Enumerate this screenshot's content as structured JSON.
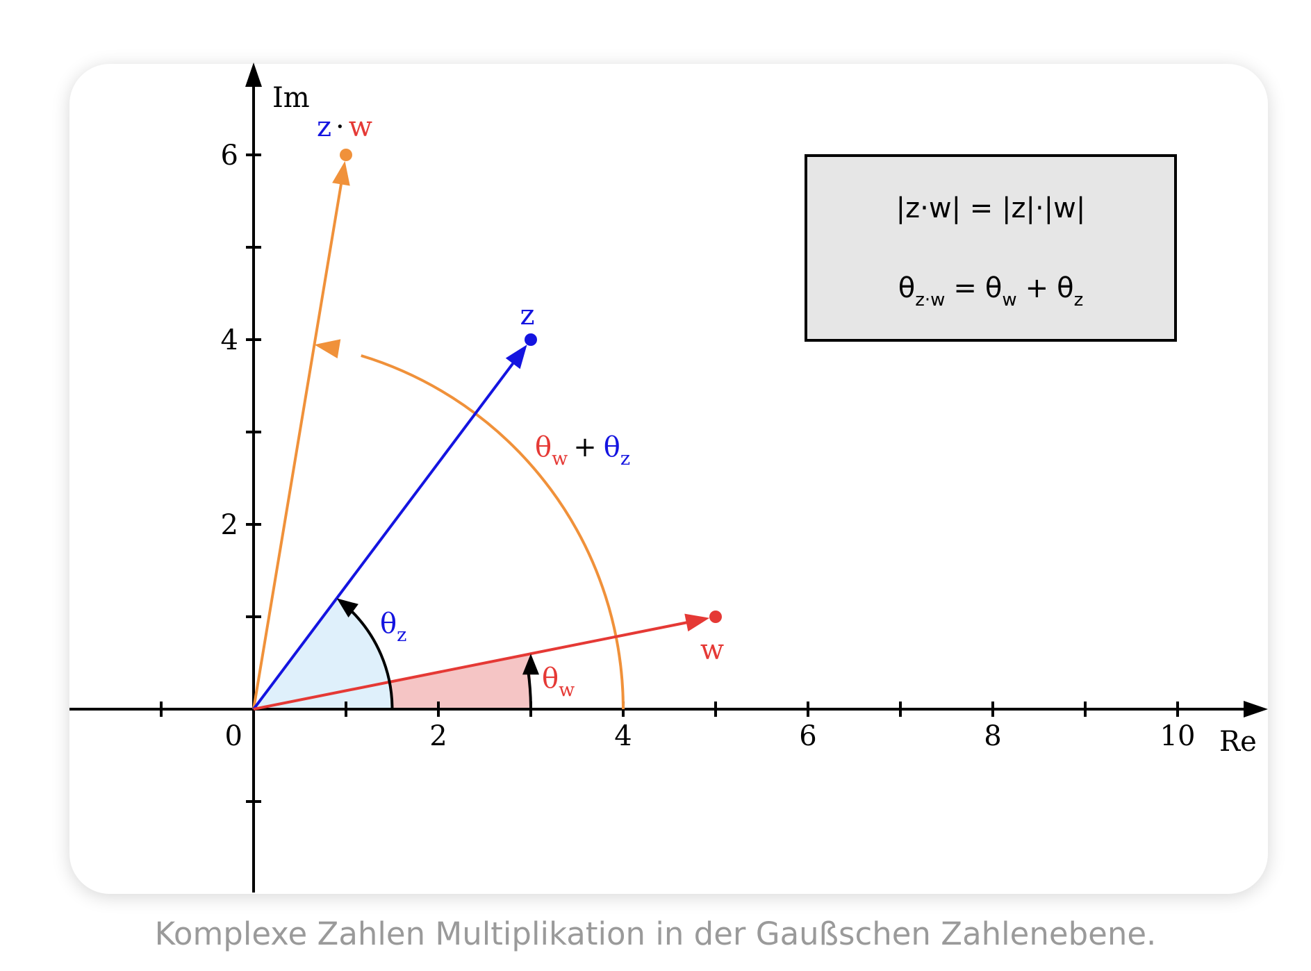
{
  "caption": "Komplexe Zahlen Multiplikation in der Gaußschen Zahlenebene.",
  "axes": {
    "x_label": "Re",
    "y_label": "Im",
    "origin_label": "0",
    "x_ticks": [
      "2",
      "4",
      "6",
      "8",
      "10"
    ],
    "y_ticks": [
      "2",
      "4",
      "6"
    ],
    "x_range": [
      -2,
      11
    ],
    "y_range": [
      -2,
      7
    ]
  },
  "vectors": {
    "w": {
      "label": "w",
      "re": 5,
      "im": 1,
      "color": "#e53935"
    },
    "z": {
      "label": "z",
      "re": 3,
      "im": 4,
      "color": "#1414e0"
    },
    "zw": {
      "label_z": "z",
      "label_dot": "·",
      "label_w": "w",
      "re": 1,
      "im": 6,
      "color": "#f0913a"
    }
  },
  "angles": {
    "theta_z": {
      "symbol": "θ",
      "sub": "z"
    },
    "theta_w": {
      "symbol": "θ",
      "sub": "w"
    },
    "sum": {
      "symbol1": "θ",
      "sub1": "w",
      "plus": "+",
      "symbol2": "θ",
      "sub2": "z"
    }
  },
  "formula_box": {
    "line1": "|z·w| = |z|·|w|",
    "line2_symbol": "θ",
    "line2_sub1": "z·w",
    "line2_eq": "=",
    "line2_sub2": "w",
    "line2_plus": "+",
    "line2_sub3": "z"
  },
  "colors": {
    "axis": "#000000",
    "box_fill": "#e6e6e6",
    "wedge_z": "#dff0fb",
    "wedge_w": "#f5c5c5",
    "caption": "#9a9a9a"
  }
}
